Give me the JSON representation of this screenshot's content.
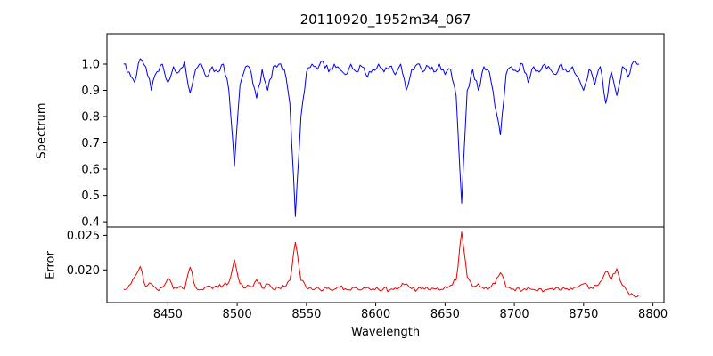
{
  "title": "20110920_1952m34_067",
  "xlabel": "Wavelength",
  "xticks": {
    "values": [
      8450,
      8500,
      8550,
      8600,
      8650,
      8700,
      8750,
      8800
    ],
    "labels": [
      "8450",
      "8500",
      "8550",
      "8600",
      "8650",
      "8700",
      "8750",
      "8800"
    ]
  },
  "chart_data": [
    {
      "type": "line",
      "panel": "spectrum",
      "ylabel": "Spectrum",
      "color": "#0000ee",
      "xlim": [
        8406,
        8808
      ],
      "ylim": [
        0.38,
        1.115
      ],
      "yticks": {
        "values": [
          0.4,
          0.5,
          0.6,
          0.7,
          0.8,
          0.9,
          1.0
        ],
        "labels": [
          "0.4",
          "0.5",
          "0.6",
          "0.7",
          "0.8",
          "0.9",
          "1.0"
        ]
      },
      "noise": 0.013,
      "absorption_line_minima": [
        {
          "wavelength": 8498,
          "flux": 0.61
        },
        {
          "wavelength": 8542,
          "flux": 0.42
        },
        {
          "wavelength": 8662,
          "flux": 0.47
        },
        {
          "wavelength": 8688,
          "flux": 0.73
        }
      ],
      "x": [
        8418,
        8422,
        8426,
        8430,
        8434,
        8438,
        8442,
        8446,
        8450,
        8454,
        8458,
        8462,
        8466,
        8470,
        8474,
        8478,
        8482,
        8486,
        8490,
        8494,
        8498,
        8502,
        8506,
        8510,
        8514,
        8518,
        8522,
        8526,
        8530,
        8534,
        8538,
        8542,
        8546,
        8550,
        8554,
        8558,
        8562,
        8566,
        8570,
        8574,
        8578,
        8582,
        8586,
        8590,
        8594,
        8598,
        8602,
        8606,
        8610,
        8614,
        8618,
        8622,
        8626,
        8630,
        8634,
        8638,
        8642,
        8646,
        8650,
        8654,
        8658,
        8662,
        8666,
        8670,
        8674,
        8678,
        8682,
        8686,
        8690,
        8694,
        8698,
        8702,
        8706,
        8710,
        8714,
        8718,
        8722,
        8726,
        8730,
        8734,
        8738,
        8742,
        8746,
        8750,
        8754,
        8758,
        8762,
        8766,
        8770,
        8774,
        8778,
        8782,
        8786,
        8790
      ],
      "y": [
        1.0,
        0.97,
        0.93,
        1.02,
        0.99,
        0.9,
        0.97,
        1.0,
        0.93,
        0.99,
        0.97,
        1.01,
        0.89,
        0.98,
        1.0,
        0.95,
        0.99,
        0.97,
        1.0,
        0.9,
        0.61,
        0.92,
        0.99,
        0.97,
        0.87,
        0.98,
        0.9,
        0.99,
        1.0,
        0.98,
        0.85,
        0.42,
        0.8,
        0.97,
        1.0,
        0.98,
        1.01,
        0.97,
        1.0,
        0.98,
        0.96,
        1.0,
        0.97,
        0.99,
        0.95,
        0.98,
        1.0,
        0.97,
        0.99,
        0.96,
        1.0,
        0.9,
        0.98,
        1.0,
        0.97,
        0.99,
        0.97,
        1.0,
        0.96,
        0.98,
        0.88,
        0.47,
        0.9,
        0.98,
        0.9,
        0.99,
        0.97,
        0.84,
        0.73,
        0.96,
        0.99,
        0.97,
        1.0,
        0.93,
        0.99,
        0.97,
        1.0,
        0.98,
        0.96,
        1.0,
        0.97,
        0.99,
        0.95,
        0.9,
        0.98,
        0.92,
        0.99,
        0.85,
        0.97,
        0.88,
        0.99,
        0.95,
        1.01,
        1.0
      ]
    },
    {
      "type": "line",
      "panel": "error",
      "ylabel": "Error",
      "color": "#ee0000",
      "xlim": [
        8406,
        8808
      ],
      "ylim": [
        0.0153,
        0.0262
      ],
      "yticks": {
        "values": [
          0.02,
          0.025
        ],
        "labels": [
          "0.020",
          "0.025"
        ]
      },
      "noise": 0.00035,
      "x": [
        8418,
        8422,
        8426,
        8430,
        8434,
        8438,
        8442,
        8446,
        8450,
        8454,
        8458,
        8462,
        8466,
        8470,
        8474,
        8478,
        8482,
        8486,
        8490,
        8494,
        8498,
        8502,
        8506,
        8510,
        8514,
        8518,
        8522,
        8526,
        8530,
        8534,
        8538,
        8542,
        8546,
        8550,
        8554,
        8558,
        8562,
        8566,
        8570,
        8574,
        8578,
        8582,
        8586,
        8590,
        8594,
        8598,
        8602,
        8606,
        8610,
        8614,
        8618,
        8622,
        8626,
        8630,
        8634,
        8638,
        8642,
        8646,
        8650,
        8654,
        8658,
        8662,
        8666,
        8670,
        8674,
        8678,
        8682,
        8686,
        8690,
        8694,
        8698,
        8702,
        8706,
        8710,
        8714,
        8718,
        8722,
        8726,
        8730,
        8734,
        8738,
        8742,
        8746,
        8750,
        8754,
        8758,
        8762,
        8766,
        8770,
        8774,
        8778,
        8782,
        8786,
        8790
      ],
      "y": [
        0.0172,
        0.0178,
        0.019,
        0.0205,
        0.0176,
        0.018,
        0.0172,
        0.0175,
        0.0188,
        0.0173,
        0.0176,
        0.0172,
        0.0204,
        0.0175,
        0.0172,
        0.0176,
        0.0173,
        0.0175,
        0.0178,
        0.0182,
        0.0215,
        0.018,
        0.0174,
        0.0176,
        0.0186,
        0.0174,
        0.018,
        0.0172,
        0.0174,
        0.0176,
        0.0185,
        0.024,
        0.0185,
        0.0174,
        0.0172,
        0.0175,
        0.0171,
        0.0174,
        0.0172,
        0.0175,
        0.0173,
        0.0171,
        0.0174,
        0.0172,
        0.0175,
        0.0173,
        0.0172,
        0.0174,
        0.0171,
        0.0174,
        0.0176,
        0.018,
        0.0173,
        0.0172,
        0.0174,
        0.0172,
        0.0173,
        0.0171,
        0.0176,
        0.0178,
        0.0185,
        0.0255,
        0.019,
        0.0176,
        0.018,
        0.0173,
        0.0174,
        0.018,
        0.0196,
        0.0175,
        0.0172,
        0.0174,
        0.0171,
        0.0175,
        0.0172,
        0.0173,
        0.0171,
        0.0173,
        0.0174,
        0.0171,
        0.0173,
        0.0172,
        0.0175,
        0.018,
        0.0173,
        0.0178,
        0.0183,
        0.0198,
        0.0186,
        0.0202,
        0.0178,
        0.0168,
        0.0163,
        0.0164
      ]
    }
  ]
}
